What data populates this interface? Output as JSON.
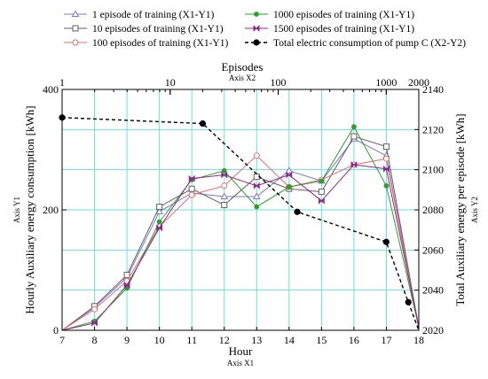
{
  "chart_data": {
    "type": "line",
    "x": [
      7,
      8,
      9,
      10,
      11,
      12,
      13,
      14,
      15,
      16,
      17,
      18
    ],
    "xlabel": "Hour",
    "xlabel_sub": "Axis X1",
    "x_ticks": [
      "7",
      "8",
      "9",
      "10",
      "11",
      "12",
      "13",
      "14",
      "15",
      "16",
      "17",
      "18"
    ],
    "xlim": [
      7,
      18
    ],
    "ylabel": "Hourly Auxiliary energy consumption [kWh]",
    "ylabel_sub": "Axis Y1",
    "ylim": [
      0,
      400
    ],
    "y_ticks": [
      "0",
      "200",
      "400"
    ],
    "x2label": "Episodes",
    "x2label_sub": "Axis X2",
    "x2_scale": "log",
    "x2lim": [
      1,
      2000
    ],
    "x2_ticks": [
      "1",
      "10",
      "100",
      "1000",
      "2000"
    ],
    "y2label": "Total Auxiliary energy per episode  [kWh]",
    "y2label_sub": "Axis Y2",
    "y2lim": [
      2020,
      2140
    ],
    "y2_ticks": [
      "2020",
      "2040",
      "2060",
      "2080",
      "2100",
      "2120",
      "2140"
    ],
    "grid": true,
    "legend_position": "top",
    "series": [
      {
        "name": "1 episode of training (X1-Y1)",
        "color": "#7a7ac8",
        "marker": "triangle",
        "values": [
          0,
          38,
          88,
          197,
          228,
          222,
          222,
          265,
          248,
          318,
          290,
          5
        ]
      },
      {
        "name": "10 episodes of training (X1-Y1)",
        "color": "#606060",
        "marker": "square",
        "values": [
          0,
          40,
          92,
          205,
          235,
          208,
          255,
          235,
          230,
          322,
          305,
          5
        ]
      },
      {
        "name": "100 episodes of training (X1-Y1)",
        "color": "#e07070",
        "marker": "circle",
        "values": [
          0,
          35,
          82,
          172,
          225,
          240,
          290,
          238,
          250,
          275,
          285,
          5
        ]
      },
      {
        "name": "1000 episodes of training (X1-Y1)",
        "color": "#2e9e2e",
        "marker": "dot",
        "values": [
          0,
          15,
          70,
          180,
          250,
          265,
          205,
          238,
          248,
          338,
          240,
          5
        ]
      },
      {
        "name": "1500 episodes of training (X1-Y1)",
        "color": "#8a2a8a",
        "marker": "bowtie",
        "values": [
          0,
          12,
          75,
          170,
          252,
          258,
          240,
          258,
          215,
          275,
          268,
          5
        ]
      },
      {
        "name": "Total electric consumption of pump C (X2-Y2)",
        "color": "#000000",
        "marker": "bigdot",
        "dashed": true,
        "points": [
          [
            1,
            2126
          ],
          [
            20,
            2123
          ],
          [
            150,
            2079
          ],
          [
            1000,
            2064
          ],
          [
            1600,
            2034
          ],
          [
            2000,
            2020
          ]
        ]
      }
    ]
  }
}
